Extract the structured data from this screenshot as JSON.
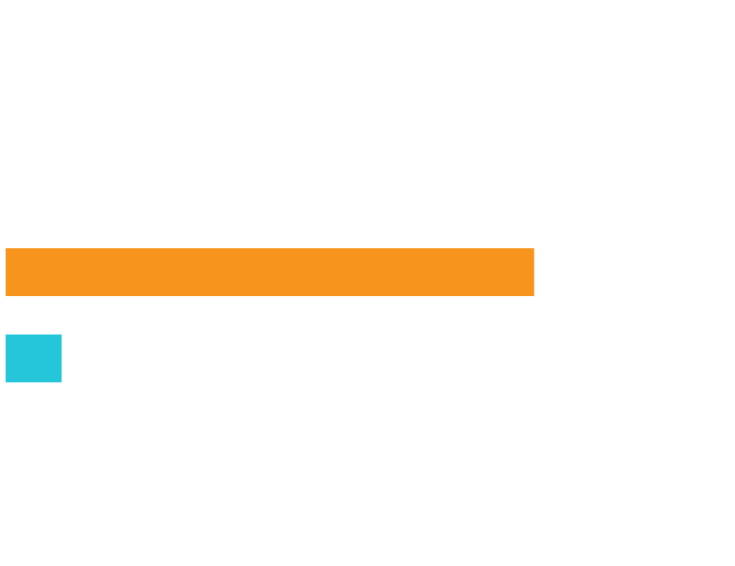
{
  "chart_data": {
    "type": "bar",
    "orientation": "horizontal",
    "categories": [
      "",
      ""
    ],
    "values": [
      100,
      10.6
    ],
    "colors": [
      "#F7941E",
      "#26C6DA"
    ],
    "title": "",
    "xlabel": "",
    "ylabel": "",
    "xlim": [
      0,
      138
    ],
    "grid": false,
    "legend": "none"
  }
}
